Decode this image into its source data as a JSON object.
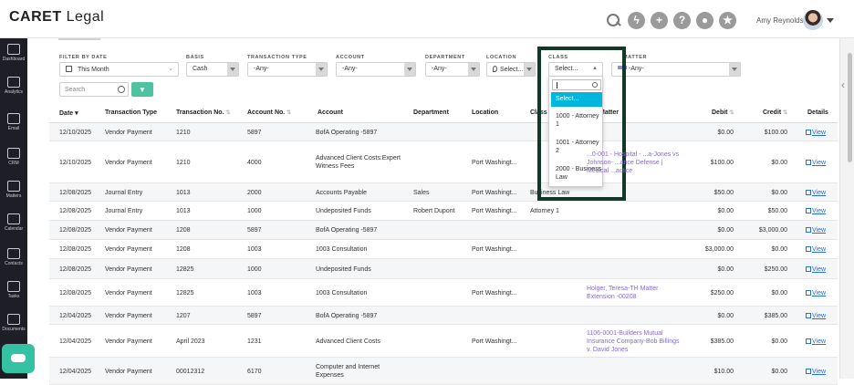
{
  "app": {
    "logo_main": "CARET",
    "logo_sub": "Legal",
    "user_name": "Amy Reynolds"
  },
  "top_icons": [
    {
      "name": "search-icon",
      "glyph": ""
    },
    {
      "name": "bolt-icon",
      "glyph": "ϟ"
    },
    {
      "name": "plus-icon",
      "glyph": "+"
    },
    {
      "name": "help-icon",
      "glyph": "?"
    },
    {
      "name": "chat-icon",
      "glyph": "●"
    },
    {
      "name": "star-icon",
      "glyph": "★"
    }
  ],
  "sidebar": {
    "items": [
      {
        "label": "Dashboard",
        "icon": "dashboard-icon"
      },
      {
        "label": "Analytics",
        "icon": "analytics-icon"
      },
      {
        "label": "Email",
        "icon": "email-icon"
      },
      {
        "label": "CRM",
        "icon": "crm-icon"
      },
      {
        "label": "Matters",
        "icon": "matters-icon"
      },
      {
        "label": "Calendar",
        "icon": "calendar-icon"
      },
      {
        "label": "Contacts",
        "icon": "contacts-icon"
      },
      {
        "label": "Tasks",
        "icon": "tasks-icon"
      },
      {
        "label": "Documents",
        "icon": "documents-icon"
      }
    ]
  },
  "filters": {
    "filter_by_date": {
      "label": "FILTER BY DATE",
      "value": "This Month"
    },
    "basis": {
      "label": "BASIS",
      "value": "Cash"
    },
    "transaction_type": {
      "label": "TRANSACTION TYPE",
      "value": "-Any-"
    },
    "account": {
      "label": "ACCOUNT",
      "value": "-Any-"
    },
    "department": {
      "label": "DEPARTMENT",
      "value": "-Any-"
    },
    "location": {
      "label": "LOCATION",
      "value": "Select..."
    },
    "class": {
      "label": "CLASS",
      "value": "Select..."
    },
    "matter": {
      "label": "MATTER",
      "value": "-Any-"
    },
    "search_placeholder": "Search",
    "filter_button_glyph": "▼"
  },
  "class_dropdown": {
    "options": [
      "Select...",
      "1000 - Attorney 1",
      "1001 - Attorney 2",
      "2000 - Business Law"
    ],
    "selected": "Select..."
  },
  "table": {
    "headers": {
      "date": "Date",
      "transaction_type": "Transaction Type",
      "transaction_no": "Transaction No.",
      "account_no": "Account No.",
      "account": "Account",
      "department": "Department",
      "location": "Location",
      "class": "Class",
      "matter": "Matter",
      "debit": "Debit",
      "credit": "Credit",
      "details": "Details"
    },
    "rows": [
      {
        "date": "12/10/2025",
        "type": "Vendor Payment",
        "tno": "1210",
        "ano": "5897",
        "account": "BofA Operating -5897",
        "dept": "",
        "loc": "",
        "cls": "",
        "matter": "",
        "debit": "$0.00",
        "credit": "$100.00",
        "details": "View"
      },
      {
        "date": "12/10/2025",
        "type": "Vendor Payment",
        "tno": "1210",
        "ano": "4000",
        "account": "Advanced Client Costs:Expert Witness Fees",
        "dept": "",
        "loc": "Port Washingt...",
        "cls": "",
        "matter": "...0-001 - Hospital - ...a-Jones vs Johnson- ...ance Defense | Medical ...actice",
        "debit": "$100.00",
        "credit": "$0.00",
        "details": "View"
      },
      {
        "date": "12/08/2025",
        "type": "Journal Entry",
        "tno": "1013",
        "ano": "2000",
        "account": "Accounts Payable",
        "dept": "Sales",
        "loc": "Port Washingt...",
        "cls": "Business Law",
        "matter": "",
        "debit": "$50.00",
        "credit": "$0.00",
        "details": "View"
      },
      {
        "date": "12/08/2025",
        "type": "Journal Entry",
        "tno": "1013",
        "ano": "1000",
        "account": "Undeposited Funds",
        "dept": "Robert Dupont",
        "loc": "Port Washingt...",
        "cls": "Attorney 1",
        "matter": "",
        "debit": "$0.00",
        "credit": "$50.00",
        "details": "View"
      },
      {
        "date": "12/08/2025",
        "type": "Vendor Payment",
        "tno": "1208",
        "ano": "5897",
        "account": "BofA Operating -5897",
        "dept": "",
        "loc": "",
        "cls": "",
        "matter": "",
        "debit": "$0.00",
        "credit": "$3,000.00",
        "details": "View"
      },
      {
        "date": "12/08/2025",
        "type": "Vendor Payment",
        "tno": "1208",
        "ano": "1003",
        "account": "1003 Consultation",
        "dept": "",
        "loc": "Port Washingt...",
        "cls": "",
        "matter": "",
        "debit": "$3,000.00",
        "credit": "$0.00",
        "details": "View"
      },
      {
        "date": "12/08/2025",
        "type": "Vendor Payment",
        "tno": "12825",
        "ano": "1000",
        "account": "Undeposited Funds",
        "dept": "",
        "loc": "",
        "cls": "",
        "matter": "",
        "debit": "$0.00",
        "credit": "$250.00",
        "details": "View"
      },
      {
        "date": "12/08/2025",
        "type": "Vendor Payment",
        "tno": "12825",
        "ano": "1003",
        "account": "1003 Consultation",
        "dept": "",
        "loc": "Port Washingt...",
        "cls": "",
        "matter": "Holger, Teresa-TH Matter Extension -00208",
        "debit": "$250.00",
        "credit": "$0.00",
        "details": "View"
      },
      {
        "date": "12/04/2025",
        "type": "Vendor Payment",
        "tno": "1207",
        "ano": "5897",
        "account": "BofA Operating -5897",
        "dept": "",
        "loc": "",
        "cls": "",
        "matter": "",
        "debit": "$0.00",
        "credit": "$385.00",
        "details": "View"
      },
      {
        "date": "12/04/2025",
        "type": "Vendor Payment",
        "tno": "April 2023",
        "ano": "1231",
        "account": "Advanced Client Costs",
        "dept": "",
        "loc": "Port Washingt...",
        "cls": "",
        "matter": "1106-0001-Builders Mutual Insurance Company-Bob Billings v. David Jones",
        "debit": "$385.00",
        "credit": "$0.00",
        "details": "View"
      },
      {
        "date": "12/04/2025",
        "type": "Vendor Payment",
        "tno": "00012312",
        "ano": "6170",
        "account": "Computer and Internet Expenses",
        "dept": "",
        "loc": "",
        "cls": "",
        "matter": "",
        "debit": "$10.00",
        "credit": "$0.00",
        "details": "View"
      }
    ]
  },
  "colors": {
    "accent": "#4fc3a1",
    "sidebar_bg": "#1e1f26",
    "matter_link": "#8a6ad6",
    "view_link": "#2a6fd6",
    "dropdown_selected": "#00b6dc",
    "highlight_border": "#123828"
  }
}
